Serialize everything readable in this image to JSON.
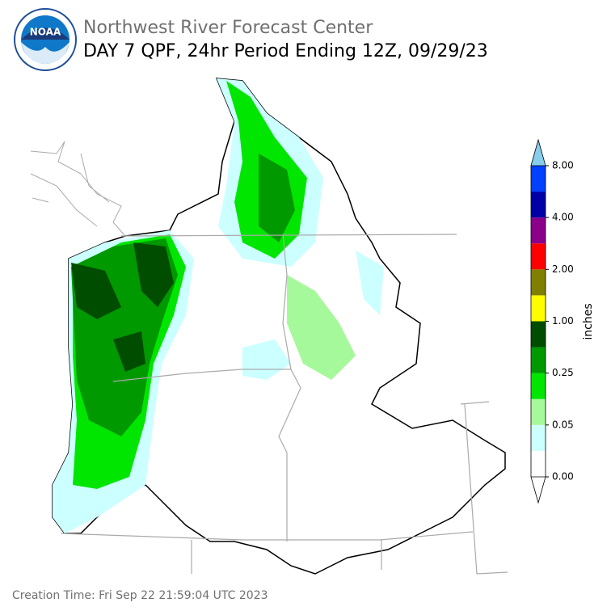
{
  "header": {
    "title": "Northwest River Forecast Center",
    "subtitle": "DAY 7 QPF, 24hr Period Ending 12Z, 09/29/23",
    "logo_text": "NOAA"
  },
  "colorbar": {
    "label": "inches",
    "colors": [
      "#ffffff",
      "#ccffff",
      "#a6f99a",
      "#00e600",
      "#009900",
      "#004d00",
      "#ffff00",
      "#808000",
      "#ff0000",
      "#8b008b",
      "#0000a6",
      "#0040ff"
    ],
    "over_color": "#87ceeb",
    "ticks": [
      {
        "value": 0,
        "label": "0.00"
      },
      {
        "value": 0.05,
        "label": "0.05"
      },
      {
        "value": 0.25,
        "label": "0.25"
      },
      {
        "value": 1,
        "label": "1.00"
      },
      {
        "value": 2,
        "label": "2.00"
      },
      {
        "value": 4,
        "label": "4.00"
      },
      {
        "value": 8,
        "label": "8.00"
      }
    ]
  },
  "footer": {
    "creation_time": "Creation Time: Fri Sep 22 21:59:04 UTC 2023"
  }
}
